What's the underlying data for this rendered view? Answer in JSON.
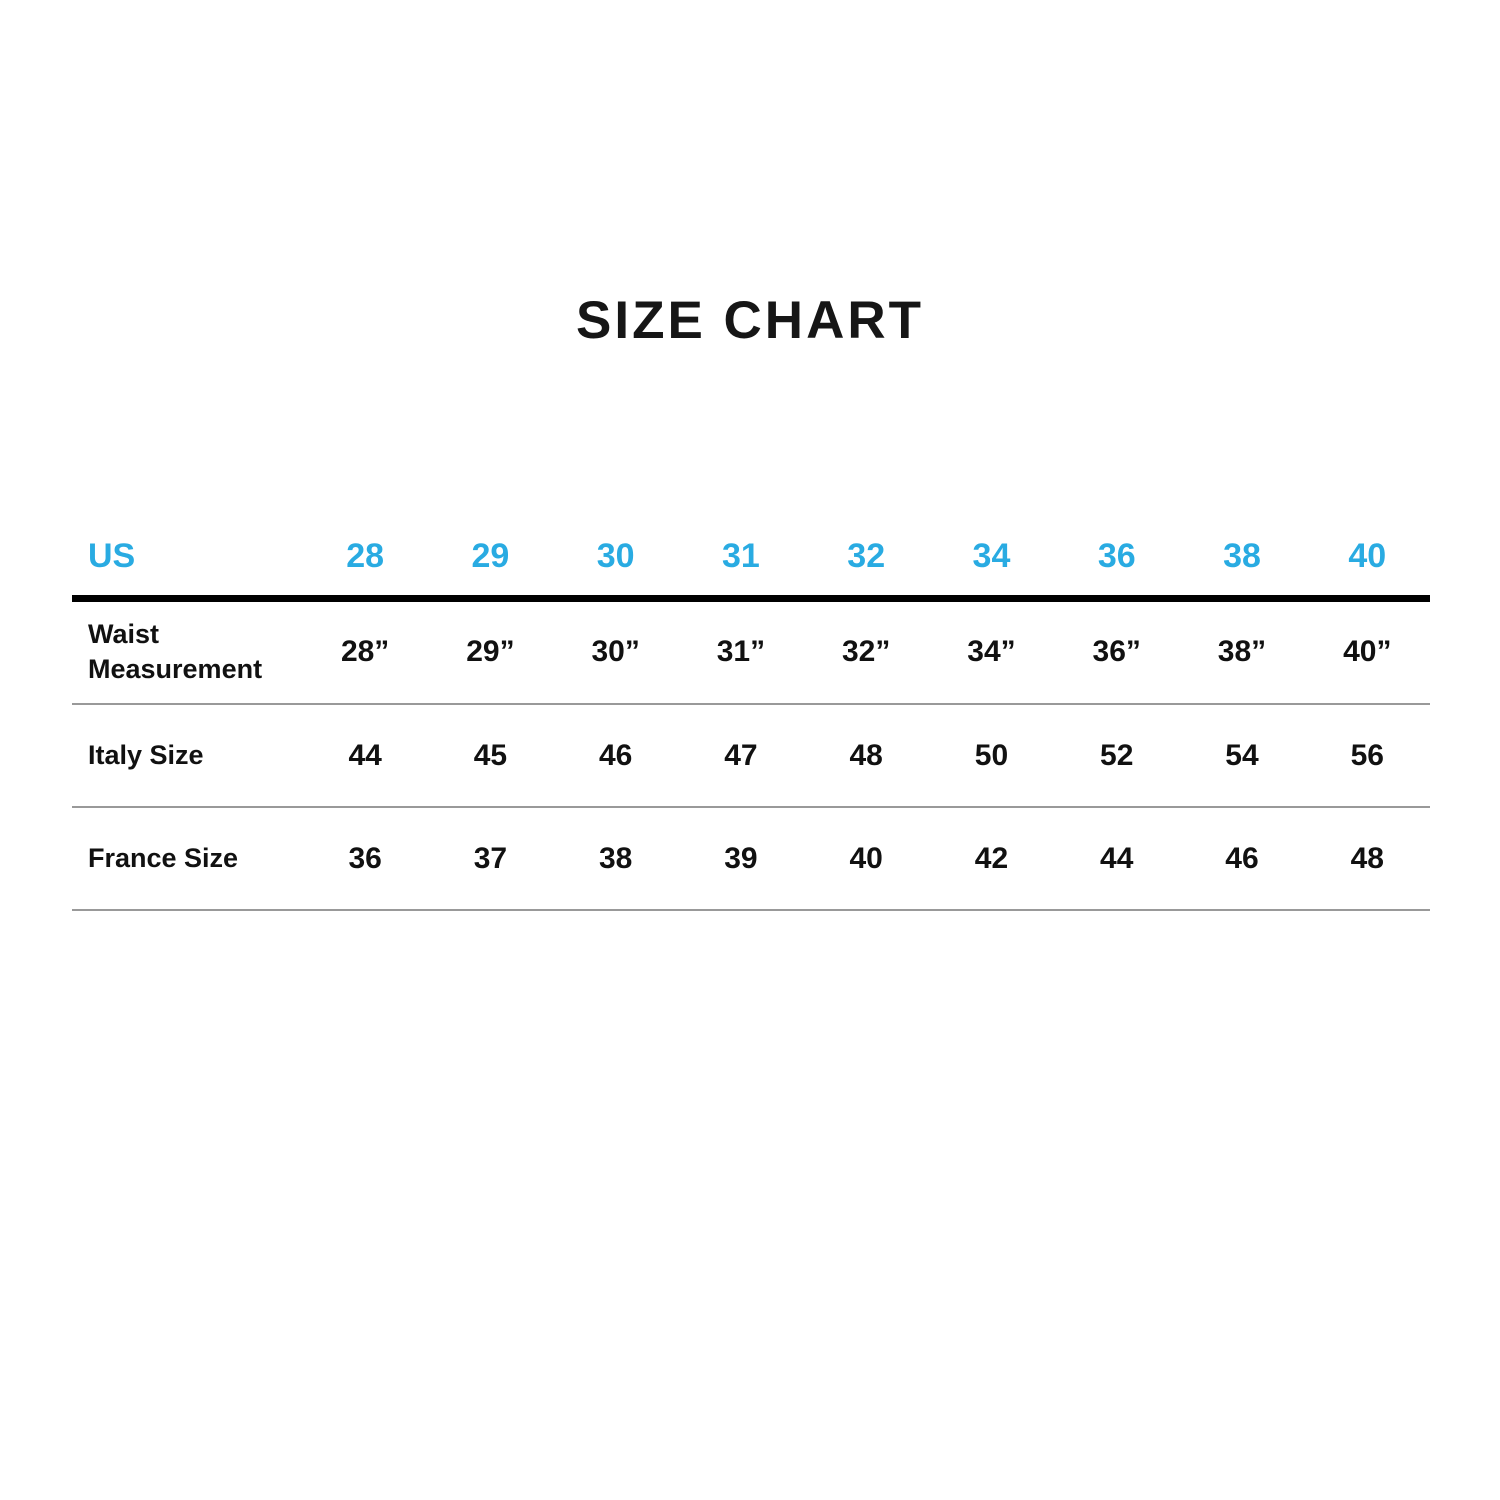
{
  "page": {
    "title": "SIZE CHART"
  },
  "colors": {
    "accent_cyan": "#29ABE2",
    "text_black": "#111111",
    "thick_rule": "#000000",
    "thin_rule": "#999999",
    "background": "#ffffff"
  },
  "table": {
    "header": [
      "US",
      "28",
      "29",
      "30",
      "31",
      "32",
      "34",
      "36",
      "38",
      "40"
    ],
    "rows": [
      [
        "Waist Measurement",
        "28”",
        "29”",
        "30”",
        "31”",
        "32”",
        "34”",
        "36”",
        "38”",
        "40”"
      ],
      [
        "Italy Size",
        "44",
        "45",
        "46",
        "47",
        "48",
        "50",
        "52",
        "54",
        "56"
      ],
      [
        "France Size",
        "36",
        "37",
        "38",
        "39",
        "40",
        "42",
        "44",
        "46",
        "48"
      ]
    ]
  },
  "chart_data": {
    "type": "table",
    "title": "SIZE CHART",
    "columns": [
      "US",
      "28",
      "29",
      "30",
      "31",
      "32",
      "34",
      "36",
      "38",
      "40"
    ],
    "rows": [
      {
        "label": "Waist Measurement",
        "values": [
          "28”",
          "29”",
          "30”",
          "31”",
          "32”",
          "34”",
          "36”",
          "38”",
          "40”"
        ]
      },
      {
        "label": "Italy Size",
        "values": [
          44,
          45,
          46,
          47,
          48,
          50,
          52,
          54,
          56
        ]
      },
      {
        "label": "France Size",
        "values": [
          36,
          37,
          38,
          39,
          40,
          42,
          44,
          46,
          48
        ]
      }
    ],
    "layout_hints": {
      "header_text_color": "#29ABE2",
      "header_rule": "thick black",
      "row_rules": "thin gray",
      "first_column_left_aligned": true
    }
  }
}
